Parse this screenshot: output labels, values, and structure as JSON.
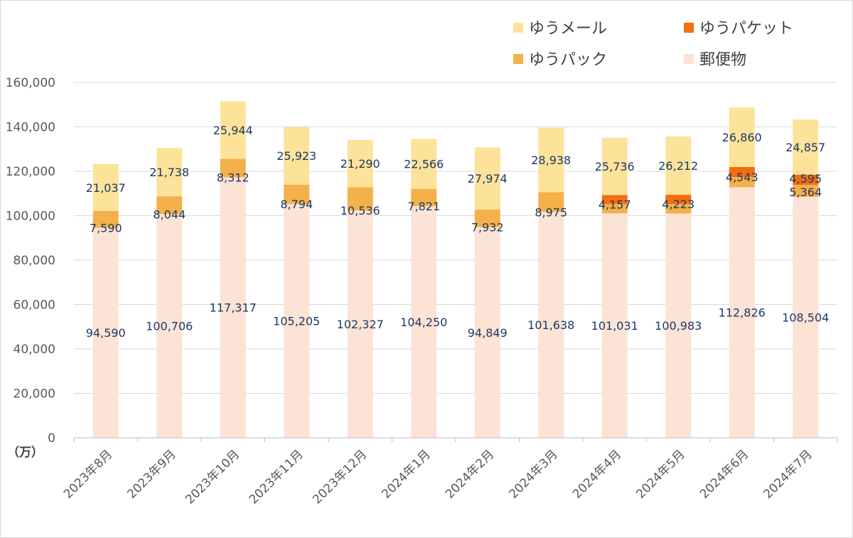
{
  "chart_data": {
    "type": "bar",
    "stacked": true,
    "unit_label": "（万）",
    "categories": [
      "2023年8月",
      "2023年9月",
      "2023年10月",
      "2023年11月",
      "2023年12月",
      "2024年1月",
      "2024年2月",
      "2024年3月",
      "2024年4月",
      "2024年5月",
      "2024年6月",
      "2024年7月"
    ],
    "series": [
      {
        "name": "郵便物",
        "color": "#fbe3d6",
        "values": [
          94590,
          100706,
          117317,
          105205,
          102327,
          104250,
          94849,
          101638,
          101031,
          100983,
          112826,
          108504
        ]
      },
      {
        "name": "ゆうパック",
        "color": "#f4b04a",
        "values": [
          7590,
          8044,
          8312,
          8794,
          10536,
          7821,
          7932,
          8975,
          4157,
          4223,
          4543,
          5364
        ]
      },
      {
        "name": "ゆうパケット",
        "color": "#f46d0f",
        "values": [
          null,
          null,
          null,
          null,
          null,
          null,
          null,
          null,
          4157,
          4223,
          4543,
          4595
        ]
      },
      {
        "name": "ゆうメール",
        "color": "#fde39a",
        "values": [
          21037,
          21738,
          25944,
          25923,
          21290,
          22566,
          27974,
          28938,
          25736,
          26212,
          26860,
          24857
        ]
      }
    ],
    "data_labels": {
      "郵便物": [
        "94,590",
        "100,706",
        "117,317",
        "105,205",
        "102,327",
        "104,250",
        "94,849",
        "101,638",
        "101,031",
        "100,983",
        "112,826",
        "108,504"
      ],
      "ゆうパック": [
        "7,590",
        "8,044",
        "8,312",
        "8,794",
        "10,536",
        "7,821",
        "7,932",
        "8,975",
        "",
        "",
        "",
        ""
      ],
      "ゆうパケット": [
        "",
        "",
        "",
        "",
        "",
        "",
        "",
        "",
        "4,157",
        "4,223",
        "4,543",
        "4,595"
      ],
      "ゆうメール": [
        "21,037",
        "21,738",
        "25,944",
        "25,923",
        "21,290",
        "22,566",
        "27,974",
        "28,938",
        "25,736",
        "26,212",
        "26,860",
        "24,857"
      ],
      "ゆうパック_extra": [
        "",
        "",
        "",
        "",
        "",
        "",
        "",
        "",
        "",
        "",
        "",
        "5,364"
      ]
    },
    "yticks": [
      "0",
      "20,000",
      "40,000",
      "60,000",
      "80,000",
      "100,000",
      "120,000",
      "140,000",
      "160,000"
    ],
    "ylim": [
      0,
      160000
    ],
    "legend": {
      "placement": "top-right",
      "items": [
        {
          "name": "ゆうメール",
          "color": "#fde39a"
        },
        {
          "name": "ゆうパケット",
          "color": "#f46d0f"
        },
        {
          "name": "ゆうパック",
          "color": "#f4b04a"
        },
        {
          "name": "郵便物",
          "color": "#fbe3d6"
        }
      ]
    },
    "grid": true,
    "gridline_color": "#d9d9d9"
  }
}
